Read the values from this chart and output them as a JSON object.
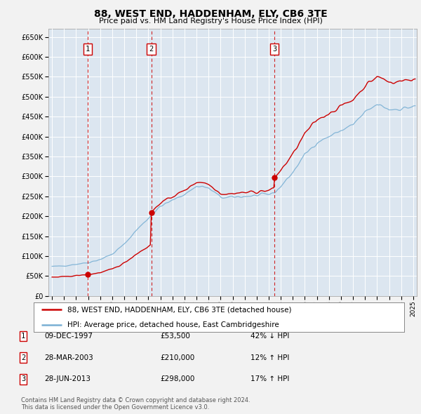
{
  "title": "88, WEST END, HADDENHAM, ELY, CB6 3TE",
  "subtitle": "Price paid vs. HM Land Registry's House Price Index (HPI)",
  "ylim": [
    0,
    670000
  ],
  "yticks": [
    0,
    50000,
    100000,
    150000,
    200000,
    250000,
    300000,
    350000,
    400000,
    450000,
    500000,
    550000,
    600000,
    650000
  ],
  "xlim_start": 1994.7,
  "xlim_end": 2025.3,
  "background_color": "#dce6f0",
  "fig_bg_color": "#f2f2f2",
  "grid_color": "#ffffff",
  "sale_color": "#cc0000",
  "hpi_color": "#7ab0d4",
  "vline_color": "#cc0000",
  "marker_box_color": "#cc0000",
  "sales": [
    {
      "date_num": 1997.94,
      "price": 53500,
      "label": "1"
    },
    {
      "date_num": 2003.24,
      "price": 210000,
      "label": "2"
    },
    {
      "date_num": 2013.49,
      "price": 298000,
      "label": "3"
    }
  ],
  "legend_sale_label": "88, WEST END, HADDENHAM, ELY, CB6 3TE (detached house)",
  "legend_hpi_label": "HPI: Average price, detached house, East Cambridgeshire",
  "table_rows": [
    {
      "num": "1",
      "date": "09-DEC-1997",
      "price": "£53,500",
      "change": "42% ↓ HPI"
    },
    {
      "num": "2",
      "date": "28-MAR-2003",
      "price": "£210,000",
      "change": "12% ↑ HPI"
    },
    {
      "num": "3",
      "date": "28-JUN-2013",
      "price": "£298,000",
      "change": "17% ↑ HPI"
    }
  ],
  "footer": "Contains HM Land Registry data © Crown copyright and database right 2024.\nThis data is licensed under the Open Government Licence v3.0.",
  "xtick_years": [
    1995,
    1996,
    1997,
    1998,
    1999,
    2000,
    2001,
    2002,
    2003,
    2004,
    2005,
    2006,
    2007,
    2008,
    2009,
    2010,
    2011,
    2012,
    2013,
    2014,
    2015,
    2016,
    2017,
    2018,
    2019,
    2020,
    2021,
    2022,
    2023,
    2024,
    2025
  ]
}
